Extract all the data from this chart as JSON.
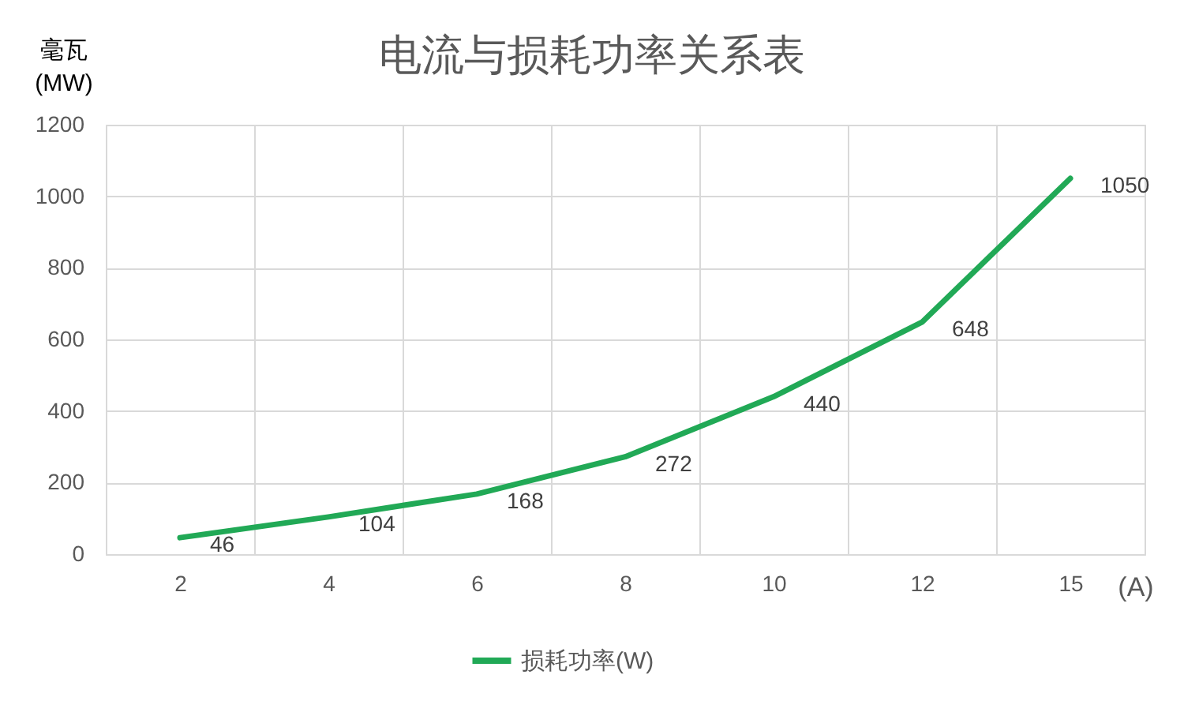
{
  "chart_data": {
    "type": "line",
    "title": "电流与损耗功率关系表",
    "ylabel": "毫瓦\n(MW)",
    "xlabel": "(A)",
    "categories": [
      "2",
      "4",
      "6",
      "8",
      "10",
      "12",
      "15"
    ],
    "series": [
      {
        "name": "损耗功率(W)",
        "color": "#21a956",
        "values": [
          46,
          104,
          168,
          272,
          440,
          648,
          1050
        ]
      }
    ],
    "ylim": [
      0,
      1200
    ],
    "yticks": [
      0,
      200,
      400,
      600,
      800,
      1000,
      1200
    ],
    "grid": true,
    "legend": "bottom",
    "data_labels": true,
    "line_style": "solid"
  }
}
